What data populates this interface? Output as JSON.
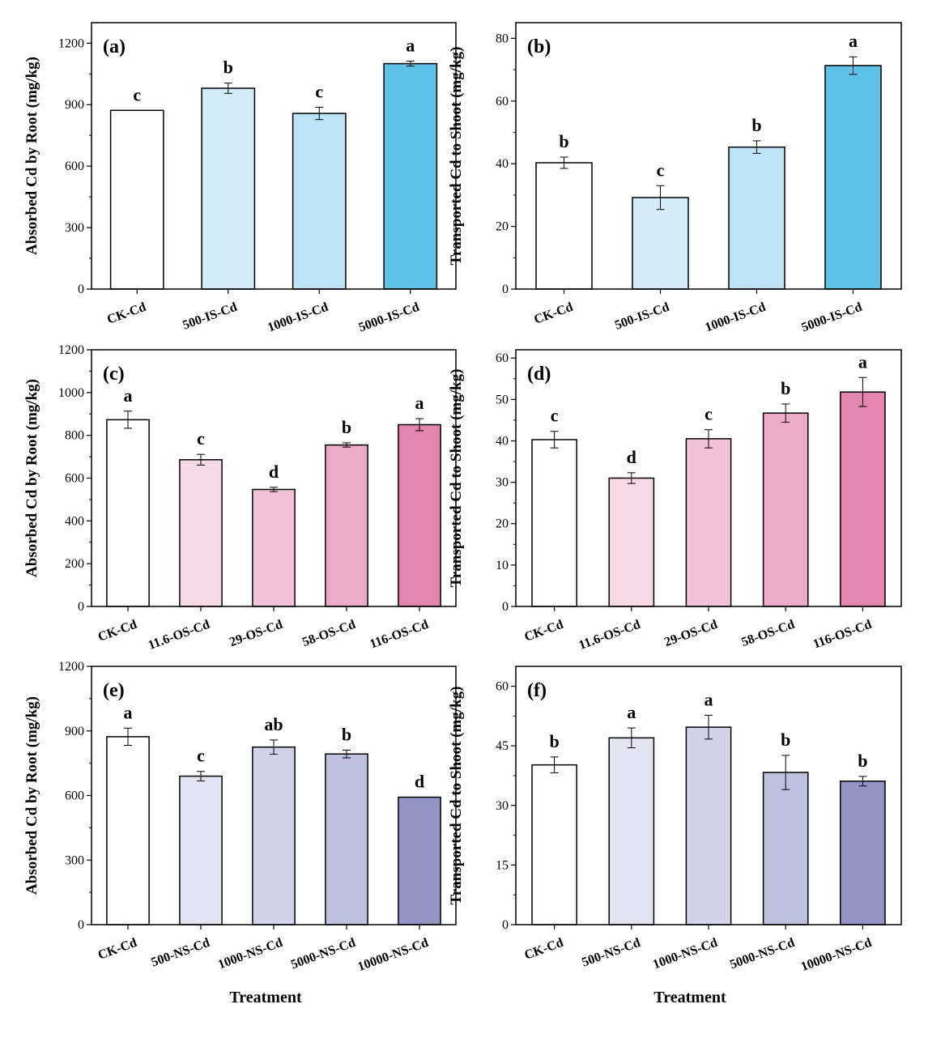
{
  "x_title": "Treatment",
  "chart_data": [
    {
      "type": "bar",
      "panel_label": "(a)",
      "ylabel": "Absorbed Cd by Root (mg/kg)",
      "ylim": [
        0,
        1300
      ],
      "yticks": [
        0,
        300,
        600,
        900,
        1200
      ],
      "categories": [
        "CK-Cd",
        "500-IS-Cd",
        "1000-IS-Cd",
        "5000-IS-Cd"
      ],
      "values": [
        872,
        980,
        857,
        1100
      ],
      "errors": [
        0,
        25,
        30,
        12
      ],
      "letters": [
        "c",
        "b",
        "c",
        "a"
      ],
      "colors": [
        "#ffffff",
        "#d4ebf9",
        "#bde3f7",
        "#5ec2e9"
      ]
    },
    {
      "type": "bar",
      "panel_label": "(b)",
      "ylabel": "Transported Cd to Shoot (mg/kg)",
      "ylim": [
        0,
        85
      ],
      "yticks": [
        0,
        20,
        40,
        60,
        80
      ],
      "categories": [
        "CK-Cd",
        "500-IS-Cd",
        "1000-IS-Cd",
        "5000-IS-Cd"
      ],
      "values": [
        40.3,
        29.2,
        45.3,
        71.3
      ],
      "errors": [
        1.8,
        3.8,
        2.0,
        2.8
      ],
      "letters": [
        "b",
        "c",
        "b",
        "a"
      ],
      "colors": [
        "#ffffff",
        "#d4ebf9",
        "#bde3f7",
        "#5ec2e9"
      ]
    },
    {
      "type": "bar",
      "panel_label": "(c)",
      "ylabel": "Absorbed Cd by Root (mg/kg)",
      "ylim": [
        0,
        1200
      ],
      "yticks": [
        0,
        200,
        400,
        600,
        800,
        1000,
        1200
      ],
      "categories": [
        "CK-Cd",
        "11.6-OS-Cd",
        "29-OS-Cd",
        "58-OS-Cd",
        "116-OS-Cd"
      ],
      "values": [
        873,
        686,
        547,
        755,
        850
      ],
      "errors": [
        40,
        25,
        10,
        10,
        28
      ],
      "letters": [
        "a",
        "c",
        "d",
        "b",
        "a"
      ],
      "colors": [
        "#ffffff",
        "#f7d9e6",
        "#f1c2d8",
        "#ebaac8",
        "#e284ad"
      ]
    },
    {
      "type": "bar",
      "panel_label": "(d)",
      "ylabel": "Transported Cd to Shoot (mg/kg)",
      "ylim": [
        0,
        62
      ],
      "yticks": [
        0,
        10,
        20,
        30,
        40,
        50,
        60
      ],
      "categories": [
        "CK-Cd",
        "11.6-OS-Cd",
        "29-OS-Cd",
        "58-OS-Cd",
        "116-OS-Cd"
      ],
      "values": [
        40.3,
        31.0,
        40.5,
        46.7,
        51.8
      ],
      "errors": [
        2.0,
        1.3,
        2.2,
        2.2,
        3.5
      ],
      "letters": [
        "c",
        "d",
        "c",
        "b",
        "a"
      ],
      "colors": [
        "#ffffff",
        "#f7d9e6",
        "#f1c2d8",
        "#ebaac8",
        "#e284ad"
      ]
    },
    {
      "type": "bar",
      "panel_label": "(e)",
      "ylabel": "Absorbed Cd by Root (mg/kg)",
      "ylim": [
        0,
        1200
      ],
      "yticks": [
        0,
        300,
        600,
        900,
        1200
      ],
      "categories": [
        "CK-Cd",
        "500-NS-Cd",
        "1000-NS-Cd",
        "5000-NS-Cd",
        "10000-NS-Cd"
      ],
      "values": [
        873,
        690,
        825,
        793,
        592
      ],
      "errors": [
        40,
        22,
        33,
        18,
        0
      ],
      "letters": [
        "a",
        "c",
        "ab",
        "b",
        "d"
      ],
      "colors": [
        "#ffffff",
        "#e3e3f1",
        "#d2d3ea",
        "#bfc0e0",
        "#9394c4"
      ]
    },
    {
      "type": "bar",
      "panel_label": "(f)",
      "ylabel": "Transported Cd to Shoot (mg/kg)",
      "ylim": [
        0,
        65
      ],
      "yticks": [
        0,
        15,
        30,
        45,
        60
      ],
      "categories": [
        "CK-Cd",
        "500-NS-Cd",
        "1000-NS-Cd",
        "5000-NS-Cd",
        "10000-NS-Cd"
      ],
      "values": [
        40.2,
        47.0,
        49.7,
        38.3,
        36.1
      ],
      "errors": [
        2.0,
        2.5,
        3.0,
        4.3,
        1.2
      ],
      "letters": [
        "b",
        "a",
        "a",
        "b",
        "b"
      ],
      "colors": [
        "#ffffff",
        "#e3e3f1",
        "#d2d3ea",
        "#bfc0e0",
        "#9394c4"
      ]
    }
  ]
}
